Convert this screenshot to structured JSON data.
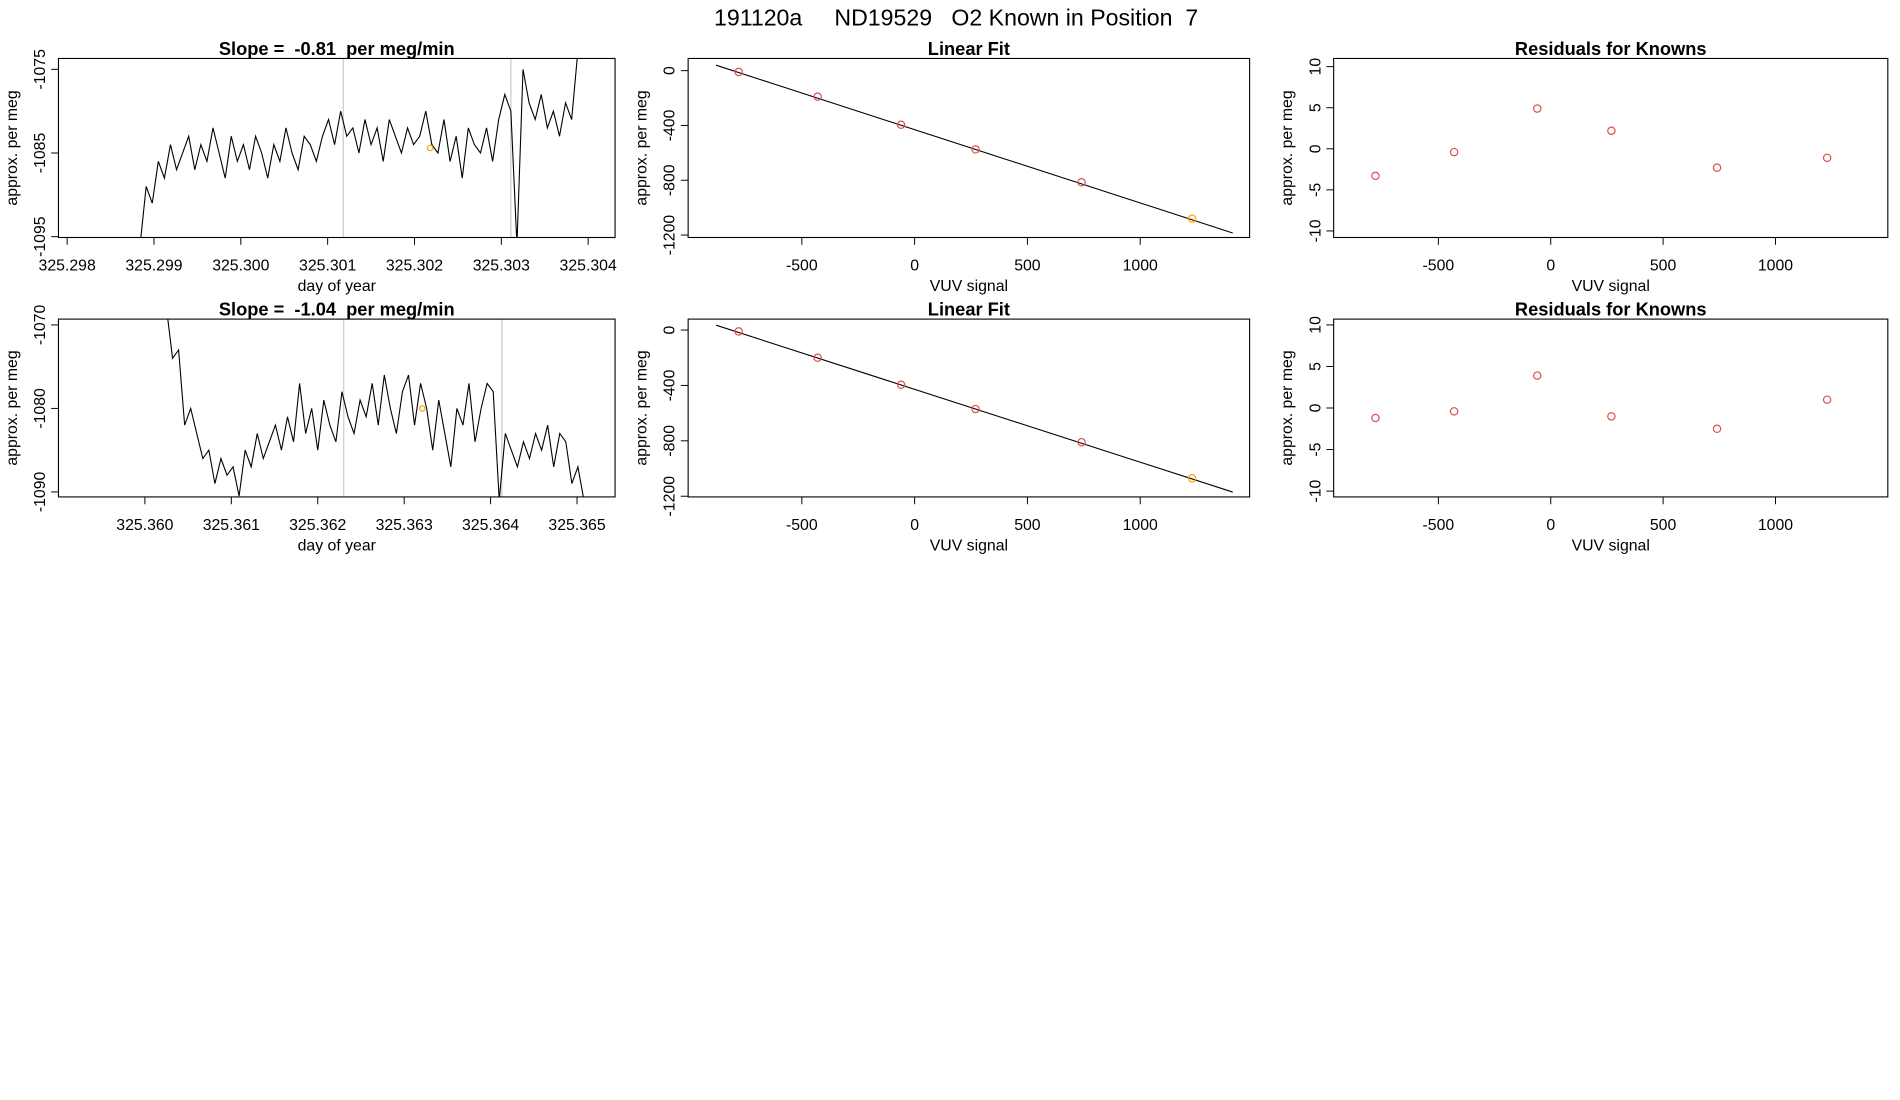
{
  "title": "191120a     ND19529   O2 Known in Position  7",
  "chart_data": [
    {
      "type": "line",
      "title": "Slope =  -0.81  per meg/min",
      "xlabel": "day of year",
      "ylabel": "approx. per meg",
      "x": [
        325.29884,
        325.29891,
        325.29898,
        325.29905,
        325.29912,
        325.29919,
        325.29926,
        325.29933,
        325.2994,
        325.29947,
        325.29954,
        325.29961,
        325.29968,
        325.29975,
        325.29982,
        325.29989,
        325.29996,
        325.30003,
        325.3001,
        325.30017,
        325.30024,
        325.30031,
        325.30038,
        325.30045,
        325.30052,
        325.30059,
        325.30066,
        325.30073,
        325.3008,
        325.30087,
        325.30094,
        325.30101,
        325.30108,
        325.30115,
        325.30122,
        325.30129,
        325.30136,
        325.30143,
        325.3015,
        325.30157,
        325.30164,
        325.30171,
        325.30178,
        325.30185,
        325.30192,
        325.30199,
        325.30206,
        325.30213,
        325.3022,
        325.30227,
        325.30234,
        325.30241,
        325.30248,
        325.30255,
        325.30262,
        325.30269,
        325.30276,
        325.30283,
        325.3029,
        325.30297,
        325.30304,
        325.30311,
        325.30318,
        325.30325,
        325.30332,
        325.30339,
        325.30346,
        325.30353,
        325.3036,
        325.30367,
        325.30374,
        325.30381,
        325.30388
      ],
      "y": [
        -1096,
        -1089,
        -1091,
        -1086,
        -1088,
        -1084,
        -1087,
        -1085,
        -1083,
        -1087,
        -1084,
        -1086,
        -1082,
        -1085,
        -1088,
        -1083,
        -1086,
        -1084,
        -1087,
        -1083,
        -1085,
        -1088,
        -1084,
        -1086,
        -1082,
        -1085,
        -1087,
        -1083,
        -1084,
        -1086,
        -1083,
        -1081,
        -1084,
        -1080,
        -1083,
        -1082,
        -1085,
        -1081,
        -1084,
        -1082,
        -1086,
        -1081,
        -1083,
        -1085,
        -1082,
        -1084,
        -1083,
        -1080,
        -1084,
        -1085,
        -1081,
        -1086,
        -1083,
        -1088,
        -1082,
        -1084,
        -1085,
        -1082,
        -1086,
        -1081,
        -1078,
        -1080,
        -1096,
        -1075,
        -1079,
        -1081,
        -1078,
        -1082,
        -1080,
        -1083,
        -1079,
        -1081,
        -1073
      ],
      "color": "#000000",
      "xlim": [
        325.2979,
        325.30431
      ],
      "ylim": [
        -1095.1,
        -1073.7
      ],
      "xticks": [
        325.298,
        325.299,
        {
          "value": 325.3,
          "label": "325.300"
        },
        325.301,
        325.302,
        325.303,
        325.304
      ],
      "yticks": [
        -1075,
        -1085,
        -1095
      ],
      "vlines": [
        325.30118,
        325.30311
      ],
      "vline_color": "#d3d3d3",
      "highlight": {
        "x": 325.30218,
        "y": -1084.4,
        "color": "#ffa500"
      }
    },
    {
      "type": "scatter",
      "title": "Linear Fit",
      "xlabel": "VUV signal",
      "ylabel": "approx. per meg",
      "x": [
        -780,
        -430,
        -60,
        270,
        740,
        1230
      ],
      "y": [
        -10,
        -190,
        -395,
        -575,
        -815,
        -1080
      ],
      "colors": [
        "#e05050",
        "#e05050",
        "#e05050",
        "#e05050",
        "#e05050",
        "#ffa500"
      ],
      "fit": {
        "x": [
          -880,
          1410
        ],
        "y": [
          40,
          -1185
        ]
      },
      "fit_color": "#000000",
      "xlim": [
        -1004,
        1485
      ],
      "ylim": [
        -1218,
        89
      ],
      "xticks": [
        -500,
        0,
        500,
        1000
      ],
      "yticks": [
        0,
        -400,
        -800,
        -1200
      ]
    },
    {
      "type": "scatter",
      "title": "Residuals for Knowns",
      "xlabel": "VUV signal",
      "ylabel": "approx. per meg",
      "x": [
        -780,
        -430,
        -60,
        270,
        740,
        1230
      ],
      "y": [
        -3.3,
        -0.4,
        4.9,
        2.2,
        -2.3,
        -1.1
      ],
      "colors": [
        "#e05050",
        "#e05050",
        "#e05050",
        "#e05050",
        "#e05050",
        "#e05050"
      ],
      "xlim": [
        -966,
        1500
      ],
      "ylim": [
        -10.8,
        11
      ],
      "xticks": [
        -500,
        0,
        500,
        1000
      ],
      "yticks": [
        10,
        5,
        0,
        -5,
        -10
      ]
    },
    {
      "type": "line",
      "title": "Slope =  -1.04  per meg/min",
      "xlabel": "day of year",
      "ylabel": "approx. per meg",
      "x": [
        325.36025,
        325.36032,
        325.36039,
        325.36046,
        325.36053,
        325.3606,
        325.36067,
        325.36074,
        325.36081,
        325.36088,
        325.36095,
        325.36102,
        325.36109,
        325.36116,
        325.36123,
        325.3613,
        325.36137,
        325.36144,
        325.36151,
        325.36158,
        325.36165,
        325.36172,
        325.36179,
        325.36186,
        325.36193,
        325.362,
        325.36207,
        325.36214,
        325.36221,
        325.36228,
        325.36235,
        325.36242,
        325.36249,
        325.36256,
        325.36263,
        325.3627,
        325.36277,
        325.36284,
        325.36291,
        325.36298,
        325.36305,
        325.36312,
        325.36319,
        325.36326,
        325.36333,
        325.3634,
        325.36347,
        325.36354,
        325.36361,
        325.36368,
        325.36375,
        325.36382,
        325.36389,
        325.36396,
        325.36403,
        325.3641,
        325.36417,
        325.36424,
        325.36431,
        325.36438,
        325.36445,
        325.36452,
        325.36459,
        325.36466,
        325.36473,
        325.3648,
        325.36487,
        325.36494,
        325.36501,
        325.36508
      ],
      "y": [
        -1068,
        -1074,
        -1073,
        -1082,
        -1080,
        -1083,
        -1086,
        -1085,
        -1089,
        -1086,
        -1088,
        -1087,
        -1090.5,
        -1085,
        -1087,
        -1083,
        -1086,
        -1084,
        -1082,
        -1085,
        -1081,
        -1084,
        -1077,
        -1083,
        -1080,
        -1085,
        -1079,
        -1082,
        -1084,
        -1078,
        -1081,
        -1083,
        -1079,
        -1081,
        -1077,
        -1082,
        -1076,
        -1080,
        -1083,
        -1078,
        -1076,
        -1082,
        -1077,
        -1080,
        -1085,
        -1079,
        -1083,
        -1087,
        -1080,
        -1082,
        -1077,
        -1084,
        -1080,
        -1077,
        -1078,
        -1091,
        -1083,
        -1085,
        -1087,
        -1084,
        -1086,
        -1083,
        -1085,
        -1082,
        -1087,
        -1083,
        -1084,
        -1089,
        -1087,
        -1091
      ],
      "color": "#000000",
      "xlim": [
        325.359,
        325.36544
      ],
      "ylim": [
        -1090.6,
        -1069.3
      ],
      "xticks": [
        {
          "value": 325.36,
          "label": "325.360"
        },
        325.361,
        325.362,
        325.363,
        325.364,
        325.365
      ],
      "yticks": [
        -1070,
        -1080,
        -1090
      ],
      "vlines": [
        325.3623,
        325.36413
      ],
      "vline_color": "#d3d3d3",
      "highlight": {
        "x": 325.36321,
        "y": -1080,
        "color": "#ffa500"
      }
    },
    {
      "type": "scatter",
      "title": "Linear Fit",
      "xlabel": "VUV signal",
      "ylabel": "approx. per meg",
      "x": [
        -780,
        -430,
        -60,
        270,
        740,
        1230
      ],
      "y": [
        -10,
        -200,
        -395,
        -570,
        -810,
        -1070
      ],
      "colors": [
        "#e05050",
        "#e05050",
        "#e05050",
        "#e05050",
        "#e05050",
        "#ffa500"
      ],
      "fit": {
        "x": [
          -880,
          1410
        ],
        "y": [
          35,
          -1170
        ]
      },
      "fit_color": "#000000",
      "xlim": [
        -1004,
        1485
      ],
      "ylim": [
        -1205,
        79
      ],
      "xticks": [
        -500,
        0,
        500,
        1000
      ],
      "yticks": [
        0,
        -400,
        -800,
        -1200
      ]
    },
    {
      "type": "scatter",
      "title": "Residuals for Knowns",
      "xlabel": "VUV signal",
      "ylabel": "approx. per meg",
      "x": [
        -780,
        -430,
        -60,
        270,
        740,
        1230
      ],
      "y": [
        -1.2,
        -0.4,
        3.9,
        -1.0,
        -2.5,
        1.0
      ],
      "colors": [
        "#e05050",
        "#e05050",
        "#e05050",
        "#e05050",
        "#e05050",
        "#e05050"
      ],
      "xlim": [
        -966,
        1500
      ],
      "ylim": [
        -10.7,
        10.7
      ],
      "xticks": [
        -500,
        0,
        500,
        1000
      ],
      "yticks": [
        10,
        5,
        0,
        -5,
        -10
      ]
    }
  ]
}
